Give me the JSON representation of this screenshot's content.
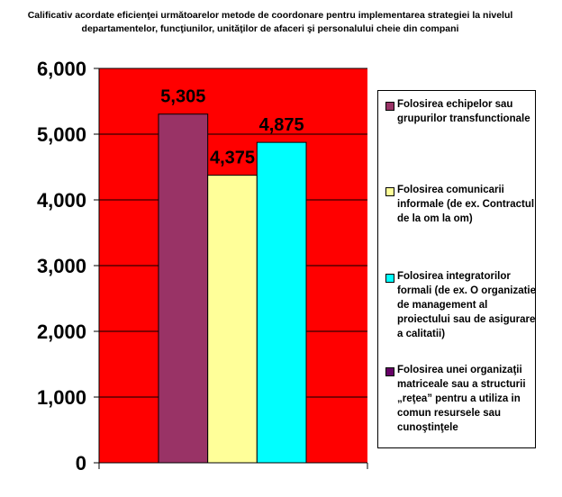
{
  "chart_data": {
    "type": "bar",
    "title": "Calificativ acordate eficienţei următoarelor metode de coordonare pentru implementarea strategiei la nivelul departamentelor, funcţiunilor, unităţilor de afaceri şi personalului cheie din compani",
    "categories": [
      ""
    ],
    "series": [
      {
        "name": "Folosirea echipelor sau grupurilor transfunctionale",
        "values": [
          5305
        ],
        "label": "5,305",
        "color": "#993366"
      },
      {
        "name": "Folosirea comunicarii informale (de ex. Contractul de la om la om)",
        "values": [
          4375
        ],
        "label": "4,375",
        "color": "#FFFF99"
      },
      {
        "name": "Folosirea integratorilor formali (de ex. O organizatie de management al proiectului sau de asigurare a calitatii)",
        "values": [
          4875
        ],
        "label": "4,875",
        "color": "#00FFFF"
      },
      {
        "name": "Folosirea unei organizaţii matriceale sau a structurii „reţea” pentru a utiliza in comun resursele sau cunoştinţele",
        "values": [
          null
        ],
        "label": "",
        "color": "#660066"
      }
    ],
    "yticks": [
      "0",
      "1,000",
      "2,000",
      "3,000",
      "4,000",
      "5,000",
      "6,000"
    ],
    "ylim": [
      0,
      6000
    ],
    "xlabel": "",
    "ylabel": "",
    "grid": true,
    "legend_position": "right",
    "plot_background": "#FF0000"
  }
}
